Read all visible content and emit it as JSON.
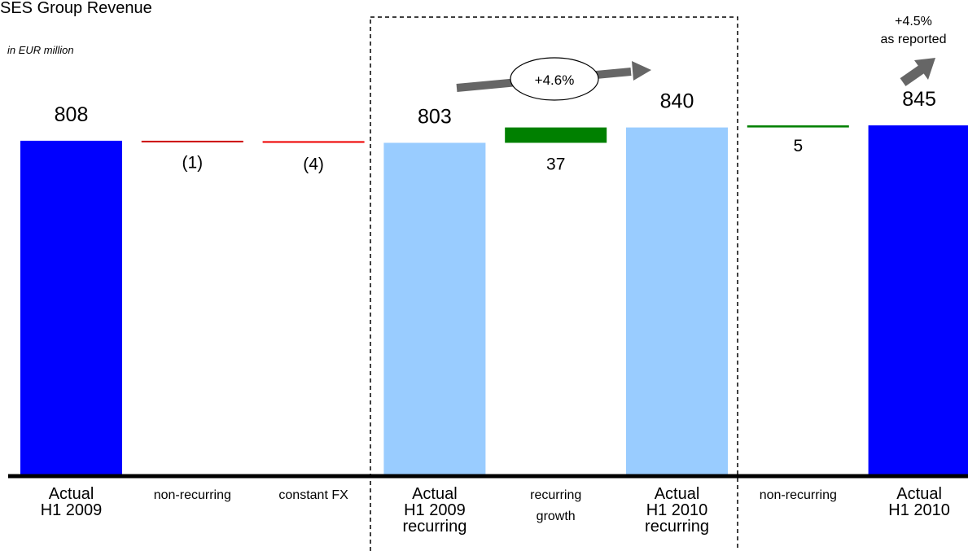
{
  "chart_data": {
    "type": "bar",
    "title": "SES Group Revenue",
    "subtitle": "in EUR million",
    "unit": "EUR million",
    "ylim": [
      0,
      1000
    ],
    "grid": false,
    "legend": "none",
    "steps": [
      {
        "label_lines": [
          "Actual",
          "H1 2009"
        ],
        "kind": "total",
        "value": 808,
        "label": "808",
        "color": "#0000ff"
      },
      {
        "label_lines": [
          "non-recurring"
        ],
        "kind": "delta",
        "value": -1,
        "label": "(1)",
        "color": "#cc0000"
      },
      {
        "label_lines": [
          "constant FX"
        ],
        "kind": "delta",
        "value": -4,
        "label": "(4)",
        "color": "#ee0000"
      },
      {
        "label_lines": [
          "Actual",
          "H1 2009",
          "recurring"
        ],
        "kind": "total",
        "value": 803,
        "label": "803",
        "color": "#99ccff"
      },
      {
        "label_lines": [
          "recurring",
          "growth"
        ],
        "kind": "delta",
        "value": 37,
        "label": "37",
        "color": "#008000"
      },
      {
        "label_lines": [
          "Actual",
          "H1 2010",
          "recurring"
        ],
        "kind": "total",
        "value": 840,
        "label": "840",
        "color": "#99ccff"
      },
      {
        "label_lines": [
          "non-recurring"
        ],
        "kind": "delta",
        "value": 5,
        "label": "5",
        "color": "#008000"
      },
      {
        "label_lines": [
          "Actual",
          "H1 2010"
        ],
        "kind": "total",
        "value": 845,
        "label": "845",
        "color": "#0000ff"
      }
    ],
    "annotations": {
      "recurring_growth": "+4.6%",
      "reported_growth": [
        "+4.5%",
        "as reported"
      ]
    }
  },
  "colors": {
    "axis": "#000000",
    "arrow": "#666666",
    "dashed_box": "#000000"
  }
}
